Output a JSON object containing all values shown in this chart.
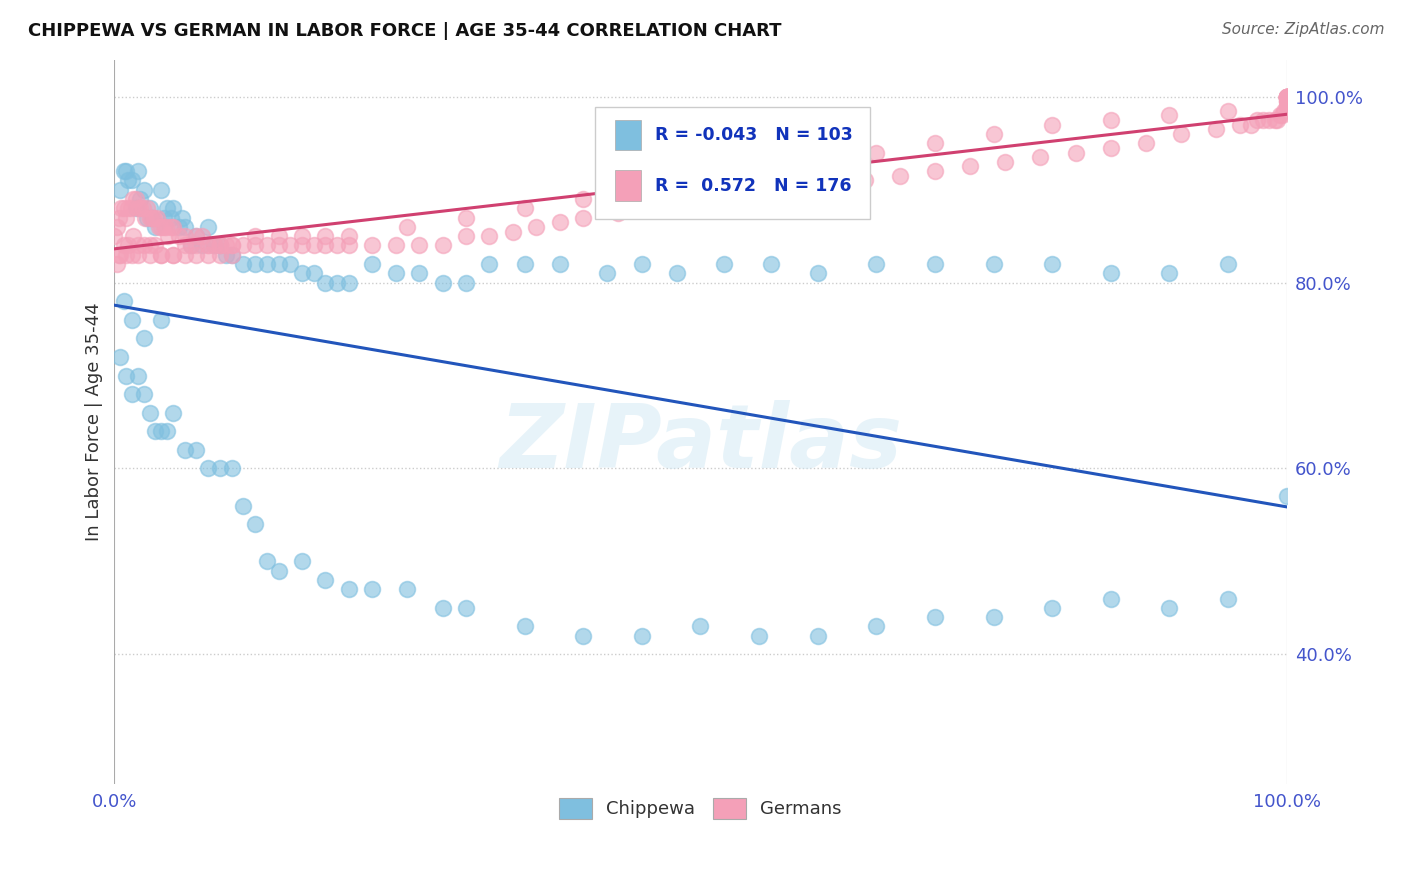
{
  "title": "CHIPPEWA VS GERMAN IN LABOR FORCE | AGE 35-44 CORRELATION CHART",
  "source": "Source: ZipAtlas.com",
  "ylabel": "In Labor Force | Age 35-44",
  "xlim": [
    0.0,
    1.0
  ],
  "ylim": [
    0.26,
    1.04
  ],
  "chippewa_color": "#7fbfdf",
  "chippewa_edge": "#7fbfdf",
  "german_color": "#f4a0b8",
  "german_edge": "#f4a0b8",
  "trend_blue": "#2255bb",
  "trend_pink": "#d04070",
  "legend_r_chippewa": "-0.043",
  "legend_n_chippewa": "103",
  "legend_r_german": "0.572",
  "legend_n_german": "176",
  "legend_label_chippewa": "Chippewa",
  "legend_label_german": "Germans",
  "watermark_text": "ZIPatlas",
  "tick_color": "#4455cc",
  "grid_color": "#cccccc",
  "chippewa_x": [
    0.005,
    0.008,
    0.01,
    0.012,
    0.015,
    0.018,
    0.02,
    0.022,
    0.025,
    0.028,
    0.03,
    0.032,
    0.035,
    0.04,
    0.042,
    0.045,
    0.048,
    0.05,
    0.055,
    0.058,
    0.06,
    0.065,
    0.07,
    0.075,
    0.08,
    0.085,
    0.09,
    0.095,
    0.1,
    0.11,
    0.12,
    0.13,
    0.14,
    0.15,
    0.16,
    0.17,
    0.18,
    0.19,
    0.2,
    0.22,
    0.24,
    0.26,
    0.28,
    0.3,
    0.32,
    0.35,
    0.38,
    0.42,
    0.45,
    0.48,
    0.52,
    0.56,
    0.6,
    0.65,
    0.7,
    0.75,
    0.8,
    0.85,
    0.9,
    0.95,
    0.005,
    0.01,
    0.015,
    0.02,
    0.025,
    0.03,
    0.035,
    0.04,
    0.045,
    0.05,
    0.06,
    0.07,
    0.08,
    0.09,
    0.1,
    0.11,
    0.12,
    0.13,
    0.14,
    0.16,
    0.18,
    0.2,
    0.22,
    0.25,
    0.28,
    0.3,
    0.35,
    0.4,
    0.45,
    0.5,
    0.55,
    0.6,
    0.65,
    0.7,
    0.75,
    0.8,
    0.85,
    0.9,
    0.95,
    1.0,
    0.008,
    0.015,
    0.025,
    0.04
  ],
  "chippewa_y": [
    0.9,
    0.92,
    0.92,
    0.91,
    0.91,
    0.88,
    0.92,
    0.89,
    0.9,
    0.87,
    0.88,
    0.87,
    0.86,
    0.9,
    0.87,
    0.88,
    0.87,
    0.88,
    0.86,
    0.87,
    0.86,
    0.84,
    0.85,
    0.84,
    0.86,
    0.84,
    0.84,
    0.83,
    0.83,
    0.82,
    0.82,
    0.82,
    0.82,
    0.82,
    0.81,
    0.81,
    0.8,
    0.8,
    0.8,
    0.82,
    0.81,
    0.81,
    0.8,
    0.8,
    0.82,
    0.82,
    0.82,
    0.81,
    0.82,
    0.81,
    0.82,
    0.82,
    0.81,
    0.82,
    0.82,
    0.82,
    0.82,
    0.81,
    0.81,
    0.82,
    0.72,
    0.7,
    0.68,
    0.7,
    0.68,
    0.66,
    0.64,
    0.64,
    0.64,
    0.66,
    0.62,
    0.62,
    0.6,
    0.6,
    0.6,
    0.56,
    0.54,
    0.5,
    0.49,
    0.5,
    0.48,
    0.47,
    0.47,
    0.47,
    0.45,
    0.45,
    0.43,
    0.42,
    0.42,
    0.43,
    0.42,
    0.42,
    0.43,
    0.44,
    0.44,
    0.45,
    0.46,
    0.45,
    0.46,
    0.57,
    0.78,
    0.76,
    0.74,
    0.76
  ],
  "german_x": [
    0.0,
    0.002,
    0.004,
    0.006,
    0.008,
    0.01,
    0.012,
    0.014,
    0.016,
    0.018,
    0.02,
    0.022,
    0.024,
    0.026,
    0.028,
    0.03,
    0.032,
    0.034,
    0.036,
    0.038,
    0.04,
    0.042,
    0.044,
    0.046,
    0.048,
    0.05,
    0.055,
    0.06,
    0.065,
    0.07,
    0.075,
    0.08,
    0.085,
    0.09,
    0.095,
    0.1,
    0.11,
    0.12,
    0.13,
    0.14,
    0.15,
    0.16,
    0.17,
    0.18,
    0.19,
    0.2,
    0.22,
    0.24,
    0.26,
    0.28,
    0.3,
    0.32,
    0.34,
    0.36,
    0.38,
    0.4,
    0.43,
    0.46,
    0.49,
    0.52,
    0.55,
    0.58,
    0.61,
    0.64,
    0.67,
    0.7,
    0.73,
    0.76,
    0.79,
    0.82,
    0.85,
    0.88,
    0.91,
    0.94,
    0.96,
    0.97,
    0.975,
    0.98,
    0.985,
    0.99,
    0.992,
    0.994,
    0.996,
    0.998,
    1.0,
    1.0,
    1.0,
    1.0,
    1.0,
    1.0,
    0.004,
    0.008,
    0.012,
    0.016,
    0.02,
    0.025,
    0.03,
    0.035,
    0.04,
    0.05,
    0.06,
    0.07,
    0.08,
    0.09,
    0.1,
    0.12,
    0.14,
    0.16,
    0.18,
    0.2,
    0.25,
    0.3,
    0.35,
    0.4,
    0.45,
    0.5,
    0.55,
    0.6,
    0.65,
    0.7,
    0.75,
    0.8,
    0.85,
    0.9,
    0.95,
    1.0,
    1.0,
    1.0,
    1.0,
    1.0,
    1.0,
    1.0,
    1.0,
    1.0,
    1.0,
    1.0,
    0.002,
    0.005,
    0.01,
    0.015,
    0.02,
    0.03,
    0.04,
    0.05,
    0.06,
    0.07,
    0.08,
    0.09,
    0.1
  ],
  "german_y": [
    0.85,
    0.86,
    0.87,
    0.88,
    0.88,
    0.87,
    0.88,
    0.88,
    0.89,
    0.89,
    0.88,
    0.88,
    0.88,
    0.87,
    0.88,
    0.87,
    0.87,
    0.87,
    0.87,
    0.86,
    0.86,
    0.86,
    0.86,
    0.85,
    0.86,
    0.86,
    0.85,
    0.85,
    0.84,
    0.85,
    0.85,
    0.84,
    0.84,
    0.84,
    0.84,
    0.84,
    0.84,
    0.84,
    0.84,
    0.84,
    0.84,
    0.84,
    0.84,
    0.84,
    0.84,
    0.84,
    0.84,
    0.84,
    0.84,
    0.84,
    0.85,
    0.85,
    0.855,
    0.86,
    0.865,
    0.87,
    0.875,
    0.88,
    0.885,
    0.89,
    0.895,
    0.9,
    0.905,
    0.91,
    0.915,
    0.92,
    0.925,
    0.93,
    0.935,
    0.94,
    0.945,
    0.95,
    0.96,
    0.965,
    0.97,
    0.97,
    0.975,
    0.975,
    0.975,
    0.975,
    0.975,
    0.98,
    0.98,
    0.985,
    0.99,
    0.995,
    1.0,
    1.0,
    1.0,
    1.0,
    0.83,
    0.84,
    0.84,
    0.85,
    0.84,
    0.84,
    0.84,
    0.84,
    0.83,
    0.83,
    0.84,
    0.84,
    0.84,
    0.84,
    0.84,
    0.85,
    0.85,
    0.85,
    0.85,
    0.85,
    0.86,
    0.87,
    0.88,
    0.89,
    0.9,
    0.91,
    0.92,
    0.93,
    0.94,
    0.95,
    0.96,
    0.97,
    0.975,
    0.98,
    0.985,
    0.99,
    0.995,
    1.0,
    1.0,
    1.0,
    1.0,
    1.0,
    1.0,
    1.0,
    1.0,
    1.0,
    0.82,
    0.83,
    0.83,
    0.83,
    0.83,
    0.83,
    0.83,
    0.83,
    0.83,
    0.83,
    0.83,
    0.83,
    0.83
  ]
}
